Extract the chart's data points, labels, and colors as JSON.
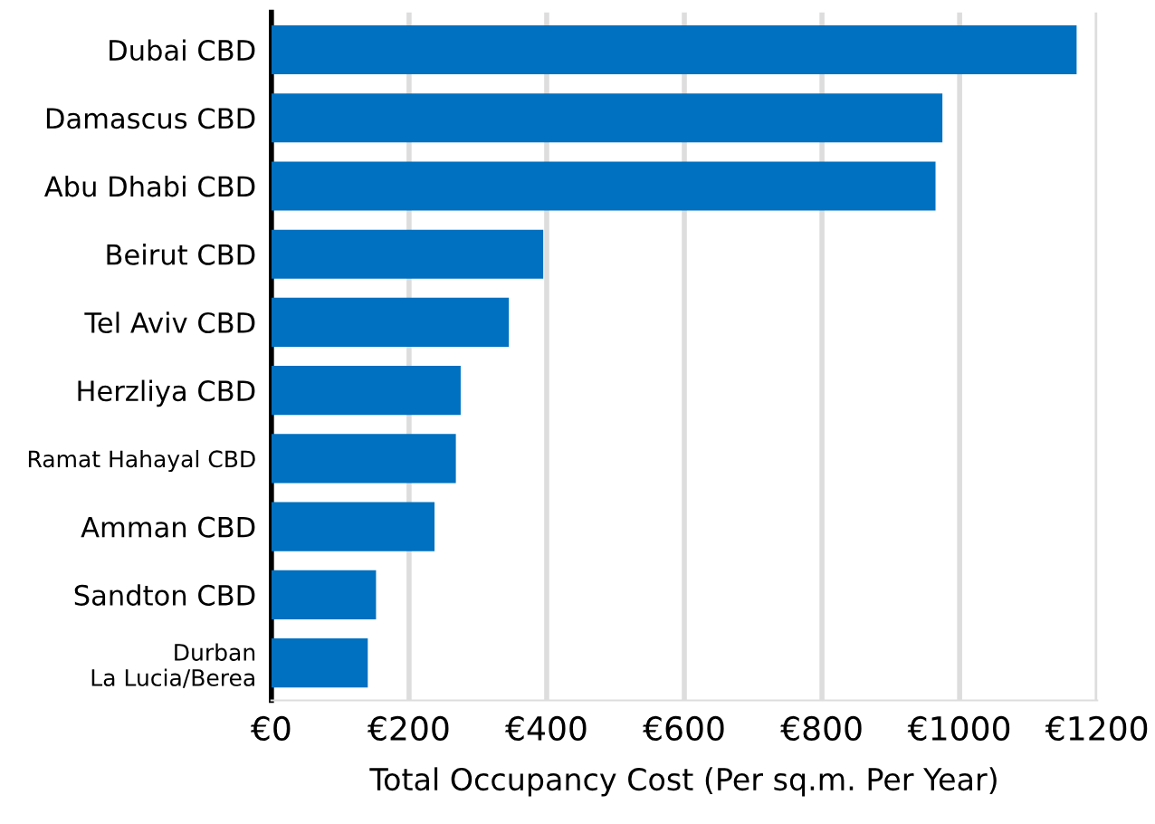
{
  "chart_data": {
    "type": "bar",
    "orientation": "horizontal",
    "xlabel": "Total Occupancy Cost (Per sq.m. Per Year)",
    "categories": [
      "Dubai CBD",
      "Damascus CBD",
      "Abu Dhabi CBD",
      "Beirut CBD",
      "Tel Aviv CBD",
      "Herzliya CBD",
      "Ramat Hahayal CBD",
      "Amman CBD",
      "Sandton CBD",
      "Durban\nLa Lucia/Berea"
    ],
    "values": [
      1170,
      975,
      965,
      395,
      345,
      275,
      268,
      237,
      152,
      140
    ],
    "color": "#0070c0",
    "xlim": [
      0,
      1200
    ],
    "xticks": [
      {
        "value": 0,
        "label": "€0"
      },
      {
        "value": 200,
        "label": "€200"
      },
      {
        "value": 400,
        "label": "€400"
      },
      {
        "value": 600,
        "label": "€600"
      },
      {
        "value": 800,
        "label": "€800"
      },
      {
        "value": 1000,
        "label": "€1000"
      },
      {
        "value": 1200,
        "label": "€1200"
      }
    ],
    "grid": "x"
  }
}
